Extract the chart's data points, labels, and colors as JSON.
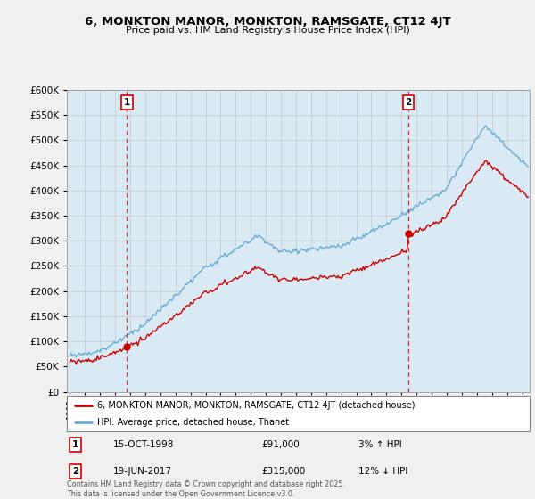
{
  "title": "6, MONKTON MANOR, MONKTON, RAMSGATE, CT12 4JT",
  "subtitle": "Price paid vs. HM Land Registry's House Price Index (HPI)",
  "ytick_values": [
    0,
    50000,
    100000,
    150000,
    200000,
    250000,
    300000,
    350000,
    400000,
    450000,
    500000,
    550000,
    600000
  ],
  "ylim": [
    0,
    600000
  ],
  "xlim_start": 1994.8,
  "xlim_end": 2025.5,
  "hpi_color": "#a8c8e8",
  "hpi_fill_color": "#daeaf5",
  "hpi_line_color": "#6aaed6",
  "price_color": "#cc0000",
  "marker1_date": 1998.79,
  "marker1_price": 91000,
  "marker1_text": "15-OCT-1998",
  "marker1_pct": "3% ↑ HPI",
  "marker2_date": 2017.47,
  "marker2_price": 315000,
  "marker2_text": "19-JUN-2017",
  "marker2_pct": "12% ↓ HPI",
  "legend_line1": "6, MONKTON MANOR, MONKTON, RAMSGATE, CT12 4JT (detached house)",
  "legend_line2": "HPI: Average price, detached house, Thanet",
  "footer": "Contains HM Land Registry data © Crown copyright and database right 2025.\nThis data is licensed under the Open Government Licence v3.0.",
  "background_color": "#f0f0f0",
  "plot_bg_color": "#daeaf5"
}
